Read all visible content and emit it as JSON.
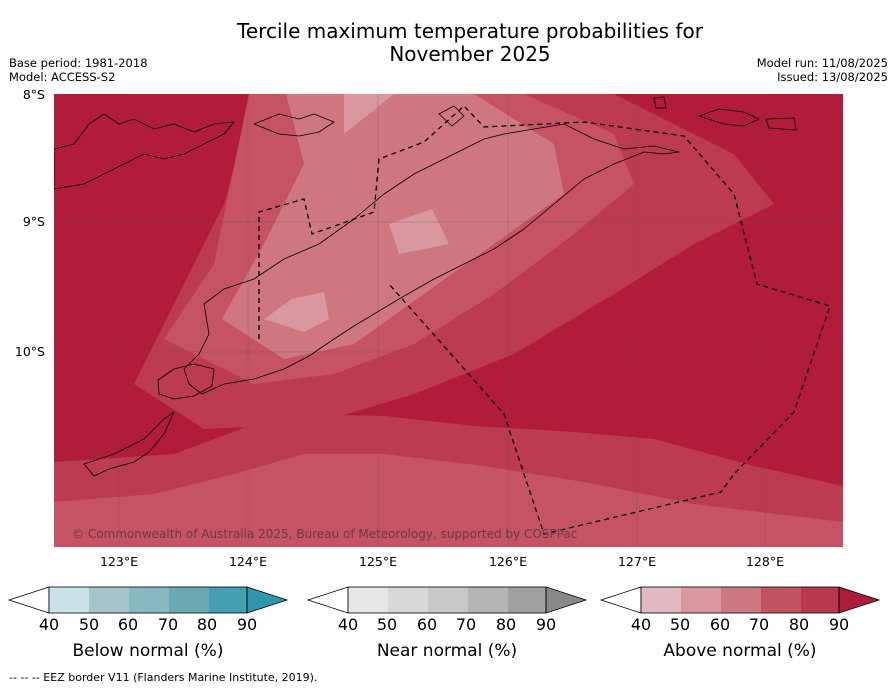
{
  "title_line1": "Tercile maximum temperature probabilities for",
  "title_line2": "November 2025",
  "base_period": "Base period: 1981-2018",
  "model": "Model: ACCESS-S2",
  "model_run": "Model run: 11/08/2025",
  "issued": "Issued: 13/08/2025",
  "latitude_labels": [
    "8°S",
    "9°S",
    "10°S"
  ],
  "longitude_labels": [
    "123°E",
    "124°E",
    "125°E",
    "126°E",
    "127°E",
    "128°E"
  ],
  "copyright": "© Commonwealth of Australia 2025, Bureau of Meteorology, supported by COSPPac",
  "colorbars": [
    {
      "title": "Below normal (%)",
      "ticks": [
        "40",
        "50",
        "60",
        "70",
        "80",
        "90"
      ],
      "colors": [
        "#c8e2e8",
        "#a6c5cb",
        "#8ab8c2",
        "#6ba9b5",
        "#44a0b0"
      ],
      "extend_color": "#2e97ab"
    },
    {
      "title": "Near normal (%)",
      "ticks": [
        "40",
        "50",
        "60",
        "70",
        "80",
        "90"
      ],
      "colors": [
        "#e6e6e6",
        "#d8d8d8",
        "#c8c8c8",
        "#b5b5b5",
        "#a0a0a0"
      ],
      "extend_color": "#888888"
    },
    {
      "title": "Above normal (%)",
      "ticks": [
        "40",
        "50",
        "60",
        "70",
        "80",
        "90"
      ],
      "colors": [
        "#e2b8c1",
        "#d9979f",
        "#cd7780",
        "#c25361",
        "#b9384e"
      ],
      "extend_color": "#ad1c3b"
    }
  ],
  "map_colors": {
    "p90": "#b01c3a",
    "p80": "#bc3b4f",
    "p70": "#c55363",
    "p60": "#cf7781",
    "p50": "#d9979f"
  },
  "footnote": "--  --  -- EEZ border V11 (Flanders Marine Institute, 2019)."
}
